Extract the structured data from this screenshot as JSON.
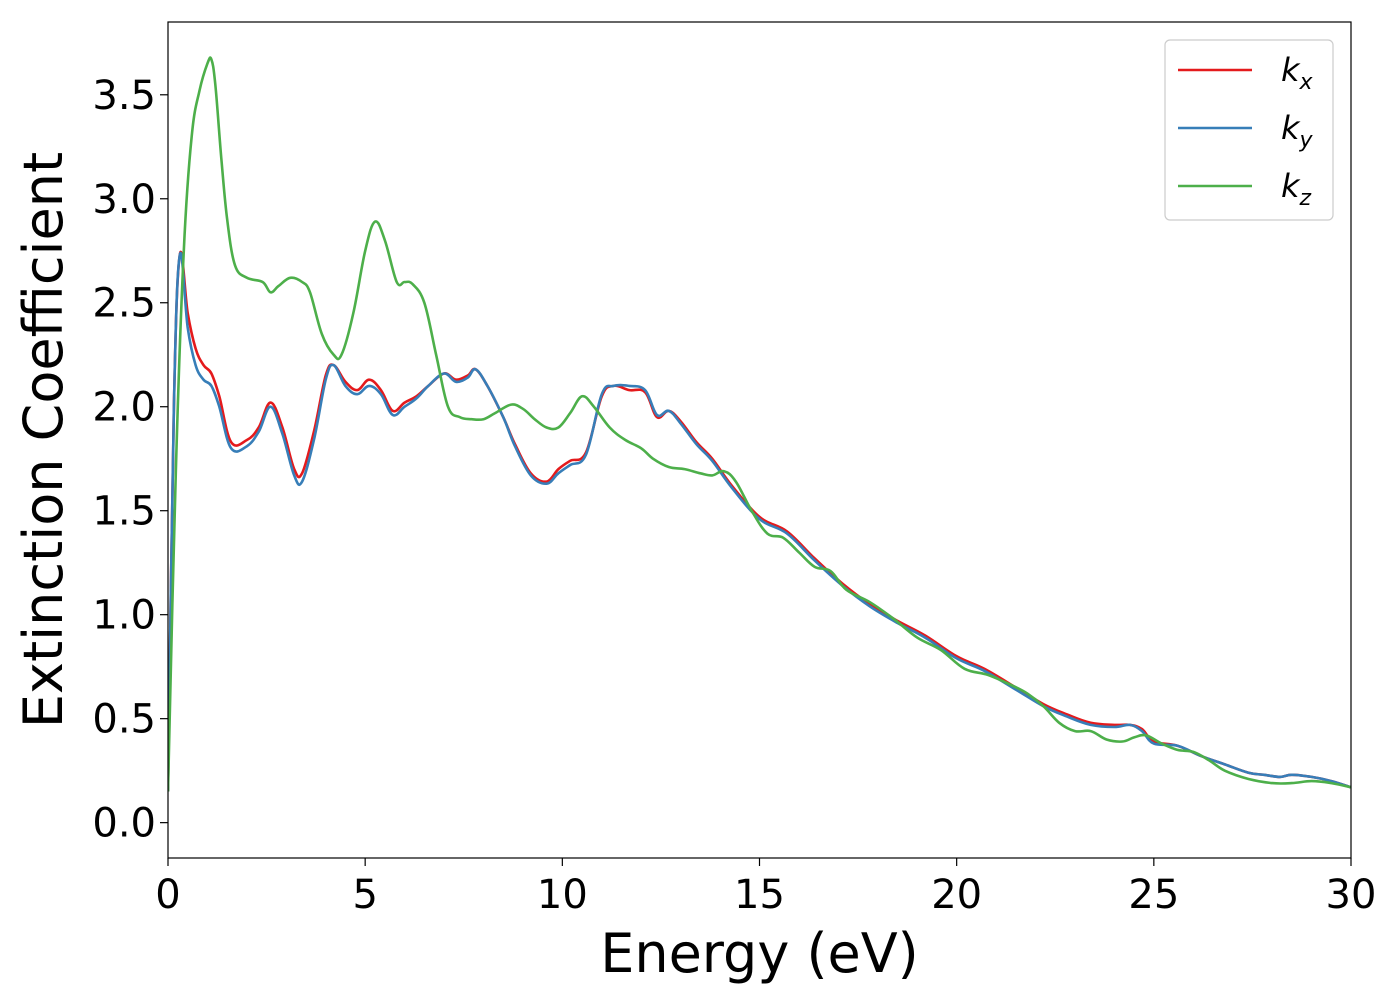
{
  "chart_data": {
    "type": "line",
    "title": "",
    "xlabel": "Energy (eV)",
    "ylabel": "Extinction Coefficient",
    "xlim": [
      0,
      30
    ],
    "ylim": [
      -0.17,
      3.85
    ],
    "xticks": [
      0,
      5,
      10,
      15,
      20,
      25,
      30
    ],
    "xtick_labels": [
      "0",
      "5",
      "10",
      "15",
      "20",
      "25",
      "30"
    ],
    "yticks": [
      0.0,
      0.5,
      1.0,
      1.5,
      2.0,
      2.5,
      3.0,
      3.5
    ],
    "ytick_labels": [
      "0.0",
      "0.5",
      "1.0",
      "1.5",
      "2.0",
      "2.5",
      "3.0",
      "3.5"
    ],
    "grid": false,
    "legend_position": "top-right",
    "series": [
      {
        "name": "k",
        "subscript": "x",
        "color": "#e41a1c",
        "x": [
          0,
          0.15,
          0.3,
          0.5,
          0.7,
          0.9,
          1.1,
          1.3,
          1.6,
          2.0,
          2.3,
          2.6,
          2.9,
          3.2,
          3.4,
          3.7,
          4.0,
          4.2,
          4.5,
          4.8,
          5.1,
          5.4,
          5.7,
          6.0,
          6.3,
          6.6,
          7.0,
          7.3,
          7.6,
          7.8,
          8.1,
          8.5,
          8.8,
          9.2,
          9.6,
          9.9,
          10.2,
          10.6,
          11.0,
          11.3,
          11.7,
          12.1,
          12.4,
          12.7,
          13.0,
          13.4,
          13.8,
          14.3,
          15.0,
          15.7,
          16.4,
          17.1,
          17.8,
          18.5,
          19.2,
          20.0,
          20.7,
          21.5,
          22.2,
          22.8,
          23.4,
          24.0,
          24.4,
          24.7,
          25.0,
          25.6,
          26.2,
          26.8,
          27.4,
          27.8,
          28.2,
          28.5,
          29.0,
          29.5,
          30.0
        ],
        "y": [
          0.15,
          2.0,
          2.73,
          2.45,
          2.28,
          2.2,
          2.16,
          2.05,
          1.83,
          1.84,
          1.9,
          2.02,
          1.9,
          1.7,
          1.68,
          1.88,
          2.15,
          2.2,
          2.12,
          2.08,
          2.13,
          2.08,
          1.98,
          2.02,
          2.05,
          2.1,
          2.16,
          2.13,
          2.15,
          2.18,
          2.1,
          1.95,
          1.82,
          1.68,
          1.64,
          1.7,
          1.74,
          1.78,
          2.05,
          2.1,
          2.08,
          2.07,
          1.95,
          1.98,
          1.93,
          1.83,
          1.75,
          1.62,
          1.47,
          1.4,
          1.27,
          1.15,
          1.05,
          0.97,
          0.9,
          0.8,
          0.74,
          0.65,
          0.57,
          0.52,
          0.48,
          0.47,
          0.47,
          0.45,
          0.39,
          0.37,
          0.32,
          0.28,
          0.24,
          0.23,
          0.22,
          0.23,
          0.22,
          0.2,
          0.17
        ]
      },
      {
        "name": "k",
        "subscript": "y",
        "color": "#377eb8",
        "x": [
          0,
          0.15,
          0.3,
          0.5,
          0.7,
          0.9,
          1.1,
          1.3,
          1.6,
          2.0,
          2.3,
          2.6,
          2.9,
          3.2,
          3.4,
          3.7,
          4.0,
          4.2,
          4.5,
          4.8,
          5.1,
          5.4,
          5.7,
          6.0,
          6.3,
          6.6,
          7.0,
          7.3,
          7.6,
          7.8,
          8.1,
          8.5,
          8.8,
          9.2,
          9.6,
          9.9,
          10.2,
          10.6,
          11.0,
          11.3,
          11.7,
          12.1,
          12.4,
          12.7,
          13.0,
          13.4,
          13.8,
          14.3,
          15.0,
          15.7,
          16.4,
          17.1,
          17.8,
          18.5,
          19.2,
          20.0,
          20.7,
          21.5,
          22.2,
          22.8,
          23.4,
          24.0,
          24.4,
          24.7,
          25.0,
          25.6,
          26.2,
          26.8,
          27.4,
          27.8,
          28.2,
          28.5,
          29.0,
          29.5,
          30.0
        ],
        "y": [
          0.15,
          2.0,
          2.73,
          2.38,
          2.2,
          2.13,
          2.1,
          2.0,
          1.8,
          1.81,
          1.88,
          2.0,
          1.87,
          1.67,
          1.64,
          1.84,
          2.13,
          2.2,
          2.1,
          2.06,
          2.1,
          2.06,
          1.96,
          2.0,
          2.04,
          2.1,
          2.16,
          2.12,
          2.14,
          2.18,
          2.1,
          1.95,
          1.81,
          1.67,
          1.63,
          1.68,
          1.72,
          1.77,
          2.06,
          2.1,
          2.1,
          2.08,
          1.96,
          1.98,
          1.92,
          1.82,
          1.74,
          1.61,
          1.46,
          1.39,
          1.26,
          1.14,
          1.04,
          0.96,
          0.89,
          0.79,
          0.73,
          0.64,
          0.56,
          0.51,
          0.47,
          0.46,
          0.47,
          0.44,
          0.38,
          0.37,
          0.32,
          0.28,
          0.24,
          0.23,
          0.22,
          0.23,
          0.22,
          0.2,
          0.17
        ]
      },
      {
        "name": "k",
        "subscript": "z",
        "color": "#4daf4a",
        "x": [
          0,
          0.2,
          0.4,
          0.6,
          0.8,
          1.0,
          1.1,
          1.2,
          1.35,
          1.5,
          1.7,
          2.0,
          2.4,
          2.6,
          2.8,
          3.1,
          3.4,
          3.6,
          3.9,
          4.2,
          4.4,
          4.7,
          5.0,
          5.25,
          5.5,
          5.8,
          6.0,
          6.2,
          6.5,
          6.8,
          7.1,
          7.4,
          7.7,
          8.0,
          8.3,
          8.7,
          9.0,
          9.3,
          9.6,
          9.9,
          10.2,
          10.5,
          10.8,
          11.2,
          11.6,
          12.0,
          12.3,
          12.7,
          13.1,
          13.5,
          13.8,
          14.1,
          14.4,
          14.8,
          15.2,
          15.6,
          16.0,
          16.4,
          16.8,
          17.2,
          17.8,
          18.4,
          19.0,
          19.6,
          20.2,
          20.8,
          21.4,
          21.8,
          22.2,
          22.6,
          23.0,
          23.4,
          23.8,
          24.2,
          24.5,
          24.8,
          25.2,
          25.6,
          26.0,
          26.4,
          26.8,
          27.4,
          28.0,
          28.5,
          29.0,
          29.5,
          30.0
        ],
        "y": [
          0.15,
          1.7,
          2.75,
          3.3,
          3.52,
          3.65,
          3.67,
          3.55,
          3.2,
          2.9,
          2.68,
          2.62,
          2.6,
          2.55,
          2.58,
          2.62,
          2.6,
          2.55,
          2.35,
          2.25,
          2.25,
          2.45,
          2.75,
          2.89,
          2.8,
          2.6,
          2.6,
          2.59,
          2.5,
          2.25,
          2.0,
          1.95,
          1.94,
          1.94,
          1.97,
          2.01,
          1.99,
          1.94,
          1.9,
          1.9,
          1.97,
          2.05,
          2.0,
          1.9,
          1.84,
          1.8,
          1.75,
          1.71,
          1.7,
          1.68,
          1.67,
          1.69,
          1.64,
          1.5,
          1.39,
          1.37,
          1.3,
          1.23,
          1.21,
          1.12,
          1.06,
          0.98,
          0.89,
          0.83,
          0.74,
          0.71,
          0.66,
          0.62,
          0.56,
          0.48,
          0.44,
          0.44,
          0.4,
          0.39,
          0.41,
          0.42,
          0.38,
          0.35,
          0.34,
          0.3,
          0.25,
          0.21,
          0.19,
          0.19,
          0.2,
          0.19,
          0.17
        ]
      }
    ]
  }
}
